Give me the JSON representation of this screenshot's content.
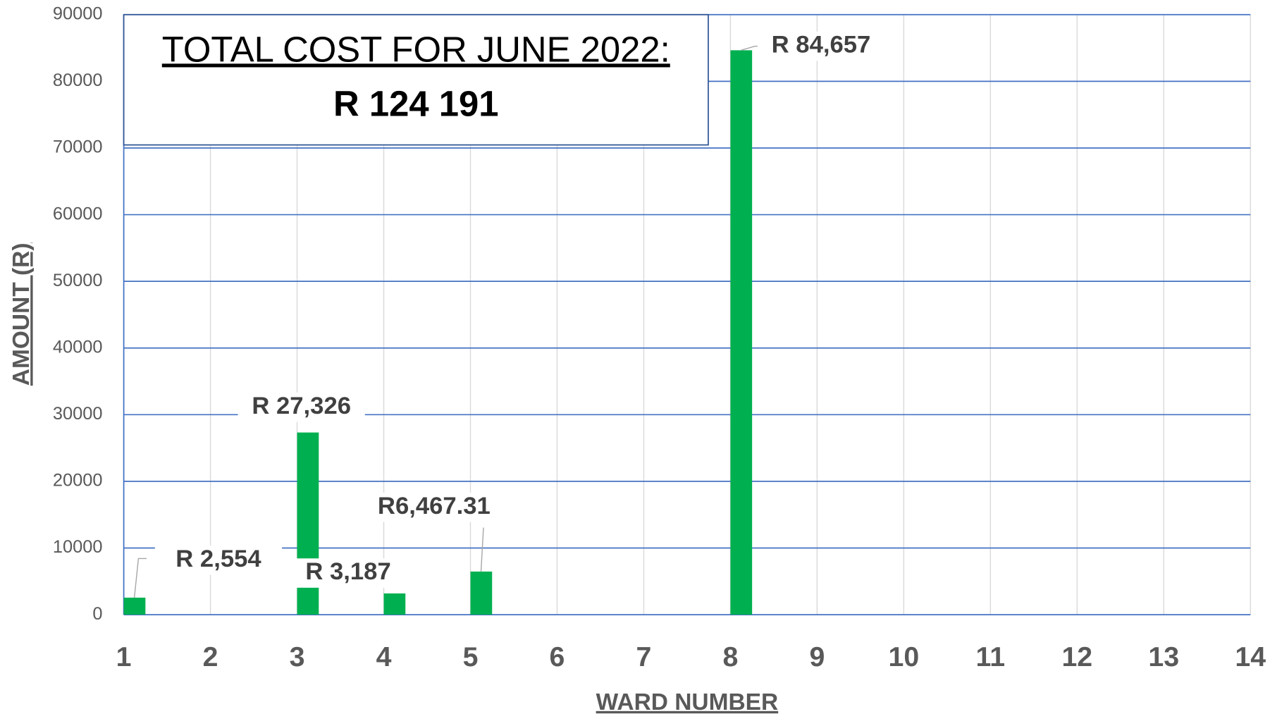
{
  "chart_data": {
    "type": "bar",
    "annotation": {
      "title": "TOTAL COST FOR JUNE 2022:",
      "value": "R 124 191"
    },
    "xlabel": "WARD NUMBER",
    "ylabel": "AMOUNT (R)",
    "x": [
      1,
      3,
      4,
      5,
      8
    ],
    "values": [
      2554,
      27326,
      3187,
      6467.31,
      84657
    ],
    "value_labels": [
      "R 2,554",
      "R 27,326",
      "R 3,187",
      "R6,467.31",
      "R 84,657"
    ],
    "color": "#00b050",
    "xlim": [
      1,
      14
    ],
    "xticks": [
      1,
      2,
      3,
      4,
      5,
      6,
      7,
      8,
      9,
      10,
      11,
      12,
      13,
      14
    ],
    "ylim": [
      0,
      90000
    ],
    "yticks": [
      0,
      10000,
      20000,
      30000,
      40000,
      50000,
      60000,
      70000,
      80000,
      90000
    ],
    "grid": true
  }
}
